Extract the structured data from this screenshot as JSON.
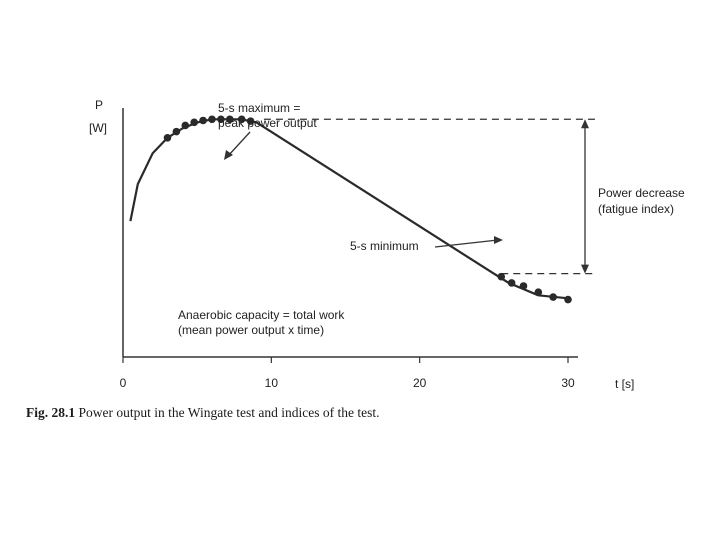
{
  "figure": {
    "caption_label": "Fig. 28.1",
    "caption_text": " Power output in the Wingate test and indices of the test."
  },
  "chart_data": {
    "type": "line",
    "ylabel_line1": "P",
    "ylabel_line2": "[W]",
    "xlabel": "t [s]",
    "xticks": [
      0,
      10,
      20,
      30
    ],
    "xlim": [
      0,
      30
    ],
    "series": [
      {
        "curve": [
          [
            0.5,
            2.2
          ],
          [
            1,
            2.8
          ],
          [
            2,
            3.3
          ],
          [
            3,
            3.55
          ],
          [
            4,
            3.7
          ],
          [
            5,
            3.8
          ],
          [
            6,
            3.85
          ],
          [
            7,
            3.85
          ],
          [
            8,
            3.85
          ],
          [
            9,
            3.8
          ],
          [
            25,
            1.35
          ],
          [
            26,
            1.2
          ],
          [
            28,
            1.0
          ],
          [
            30,
            0.95
          ]
        ],
        "points": [
          [
            3.0,
            3.55
          ],
          [
            3.6,
            3.65
          ],
          [
            4.2,
            3.75
          ],
          [
            4.8,
            3.8
          ],
          [
            5.4,
            3.83
          ],
          [
            6.0,
            3.85
          ],
          [
            6.6,
            3.85
          ],
          [
            7.2,
            3.85
          ],
          [
            8.0,
            3.85
          ],
          [
            8.6,
            3.82
          ],
          [
            25.5,
            1.3
          ],
          [
            26.2,
            1.2
          ],
          [
            27.0,
            1.15
          ],
          [
            28.0,
            1.05
          ],
          [
            29.0,
            0.97
          ],
          [
            30.0,
            0.93
          ]
        ]
      }
    ],
    "annotations": {
      "peak_line1": "5-s maximum =",
      "peak_line2": "peak power output",
      "min_label": "5-s minimum",
      "decrease_line1": "Power decrease",
      "decrease_line2": "(fatigue index)",
      "capacity_line1": "Anaerobic capacity = total work",
      "capacity_line2": "(mean power output x time)"
    },
    "levels": {
      "peak": 3.85,
      "minimum": 1.35
    }
  }
}
